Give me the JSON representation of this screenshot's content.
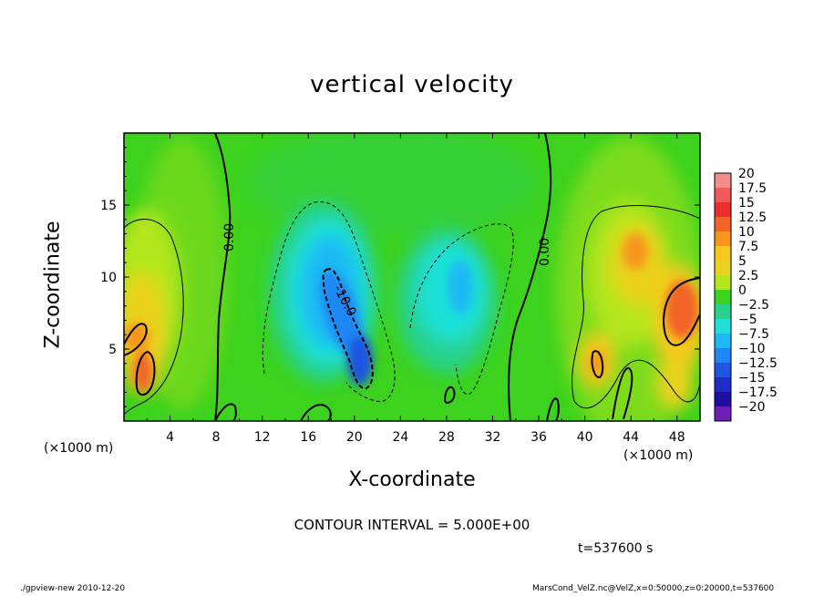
{
  "chart_data": {
    "type": "heatmap",
    "title": "vertical velocity",
    "xlabel": "X-coordinate",
    "ylabel": "Z-coordinate",
    "x_unit_label": "(×1000 m)",
    "xlim": [
      0,
      50
    ],
    "ylim": [
      0,
      20
    ],
    "x_ticks": [
      "4",
      "8",
      "12",
      "16",
      "20",
      "24",
      "28",
      "32",
      "36",
      "40",
      "44",
      "48"
    ],
    "y_ticks": [
      "5",
      "10",
      "15"
    ],
    "colorbar": {
      "labels": [
        "20",
        "17.5",
        "15",
        "12.5",
        "10",
        "7.5",
        "5",
        "2.5",
        "0",
        "−2.5",
        "−5",
        "−7.5",
        "−10",
        "−12.5",
        "−15",
        "−17.5",
        "−20"
      ],
      "colors": [
        "#f38c8c",
        "#ef5a5a",
        "#ee2e2e",
        "#f26428",
        "#f6961e",
        "#f8c81e",
        "#ead21e",
        "#b4e61e",
        "#3cd21e",
        "#28d28c",
        "#1ee1d7",
        "#1eb9f5",
        "#1e87f5",
        "#1e55e1",
        "#1e2dc8",
        "#1e0fa0",
        "#6e1eb4"
      ]
    },
    "contour_labels": [
      "0.00",
      "0.00",
      "-10.0"
    ],
    "contour_interval_text": "CONTOUR INTERVAL = 5.000E+00",
    "time_text": "t=537600 s"
  },
  "footer": {
    "left": "./gpview-new   2010-12-20",
    "right": "MarsCond_VelZ.nc@VelZ,x=0:50000,z=0:20000,t=537600"
  }
}
